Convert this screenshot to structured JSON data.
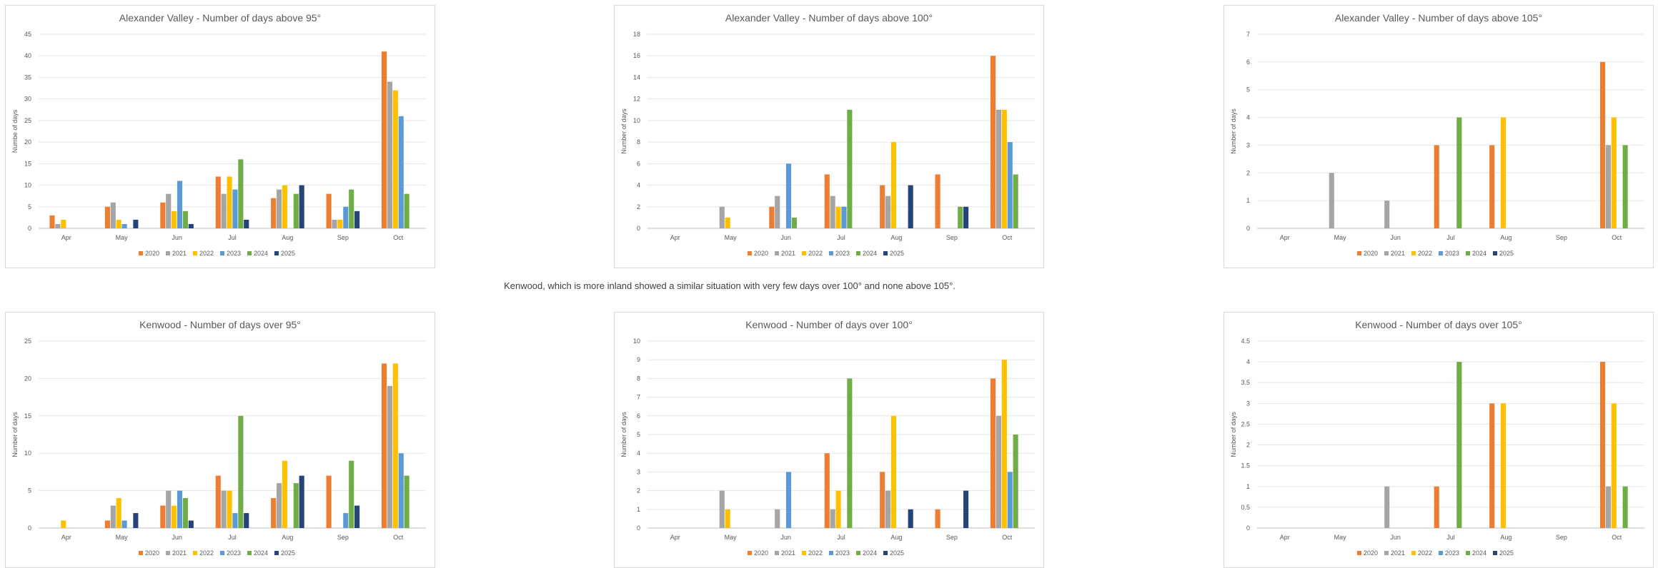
{
  "caption": "Kenwood, which is more inland showed a similar situation with very few days over 100° and none above 105°.",
  "series_colors": {
    "2020": "#ED7D31",
    "2021": "#A5A5A5",
    "2022": "#FFC000",
    "2023": "#5B9BD5",
    "2024": "#70AD47",
    "2025": "#264478"
  },
  "chart_data": [
    {
      "type": "bar",
      "title": "Alexander Valley - Number of days above 95°",
      "ylabel": "Numbe of days",
      "categories": [
        "Apr",
        "May",
        "Jun",
        "Jul",
        "Aug",
        "Sep",
        "Oct"
      ],
      "ylim": [
        0,
        45
      ],
      "yticks": [
        0,
        5,
        10,
        15,
        20,
        25,
        30,
        35,
        40,
        45
      ],
      "legend_position": "bottom",
      "series": [
        {
          "name": "2020",
          "values": [
            3,
            5,
            6,
            12,
            7,
            8,
            41
          ]
        },
        {
          "name": "2021",
          "values": [
            1,
            6,
            8,
            8,
            9,
            2,
            34
          ]
        },
        {
          "name": "2022",
          "values": [
            2,
            2,
            4,
            12,
            10,
            2,
            32
          ]
        },
        {
          "name": "2023",
          "values": [
            0,
            1,
            11,
            9,
            0,
            5,
            26
          ]
        },
        {
          "name": "2024",
          "values": [
            0,
            0,
            4,
            16,
            8,
            9,
            8
          ]
        },
        {
          "name": "2025",
          "values": [
            0,
            2,
            1,
            2,
            10,
            4,
            0
          ]
        }
      ]
    },
    {
      "type": "bar",
      "title": "Alexander Valley - Number of days above 100°",
      "ylabel": "Number of days",
      "categories": [
        "Apr",
        "May",
        "Jun",
        "Jul",
        "Aug",
        "Sep",
        "Oct"
      ],
      "ylim": [
        0,
        18
      ],
      "yticks": [
        0,
        2,
        4,
        6,
        8,
        10,
        12,
        14,
        16,
        18
      ],
      "legend_position": "bottom",
      "series": [
        {
          "name": "2020",
          "values": [
            0,
            0,
            2,
            5,
            4,
            5,
            16
          ]
        },
        {
          "name": "2021",
          "values": [
            0,
            2,
            3,
            3,
            3,
            0,
            11
          ]
        },
        {
          "name": "2022",
          "values": [
            0,
            1,
            0,
            2,
            8,
            0,
            11
          ]
        },
        {
          "name": "2023",
          "values": [
            0,
            0,
            6,
            2,
            0,
            0,
            8
          ]
        },
        {
          "name": "2024",
          "values": [
            0,
            0,
            1,
            11,
            0,
            2,
            5
          ]
        },
        {
          "name": "2025",
          "values": [
            0,
            0,
            0,
            0,
            4,
            2,
            0
          ]
        }
      ]
    },
    {
      "type": "bar",
      "title": "Alexander Valley - Number of days above 105°",
      "ylabel": "Number of days",
      "categories": [
        "Apr",
        "May",
        "Jun",
        "Jul",
        "Aug",
        "Sep",
        "Oct"
      ],
      "ylim": [
        0,
        7
      ],
      "yticks": [
        0,
        1,
        2,
        3,
        4,
        5,
        6,
        7
      ],
      "legend_position": "bottom",
      "series": [
        {
          "name": "2020",
          "values": [
            0,
            0,
            0,
            3,
            3,
            0,
            6
          ]
        },
        {
          "name": "2021",
          "values": [
            0,
            2,
            1,
            0,
            0,
            0,
            3
          ]
        },
        {
          "name": "2022",
          "values": [
            0,
            0,
            0,
            0,
            4,
            0,
            4
          ]
        },
        {
          "name": "2023",
          "values": [
            0,
            0,
            0,
            0,
            0,
            0,
            0
          ]
        },
        {
          "name": "2024",
          "values": [
            0,
            0,
            0,
            4,
            0,
            0,
            3
          ]
        },
        {
          "name": "2025",
          "values": [
            0,
            0,
            0,
            0,
            0,
            0,
            0
          ]
        }
      ]
    },
    {
      "type": "bar",
      "title": "Kenwood - Number of days over 95°",
      "ylabel": "Number of days",
      "categories": [
        "Apr",
        "May",
        "Jun",
        "Jul",
        "Aug",
        "Sep",
        "Oct"
      ],
      "ylim": [
        0,
        25
      ],
      "yticks": [
        0,
        5,
        10,
        15,
        20,
        25
      ],
      "legend_position": "bottom",
      "series": [
        {
          "name": "2020",
          "values": [
            0,
            1,
            3,
            7,
            4,
            7,
            22
          ]
        },
        {
          "name": "2021",
          "values": [
            0,
            3,
            5,
            5,
            6,
            0,
            19
          ]
        },
        {
          "name": "2022",
          "values": [
            1,
            4,
            3,
            5,
            9,
            0,
            22
          ]
        },
        {
          "name": "2023",
          "values": [
            0,
            1,
            5,
            2,
            0,
            2,
            10
          ]
        },
        {
          "name": "2024",
          "values": [
            0,
            0,
            4,
            15,
            6,
            9,
            7
          ]
        },
        {
          "name": "2025",
          "values": [
            0,
            2,
            1,
            2,
            7,
            3,
            0
          ]
        }
      ]
    },
    {
      "type": "bar",
      "title": "Kenwood - Number of days over 100°",
      "ylabel": "Number of days",
      "categories": [
        "Apr",
        "May",
        "Jun",
        "Jul",
        "Aug",
        "Sep",
        "Oct"
      ],
      "ylim": [
        0,
        10
      ],
      "yticks": [
        0,
        1,
        2,
        3,
        4,
        5,
        6,
        7,
        8,
        9,
        10
      ],
      "legend_position": "bottom",
      "series": [
        {
          "name": "2020",
          "values": [
            0,
            0,
            0,
            4,
            3,
            1,
            8
          ]
        },
        {
          "name": "2021",
          "values": [
            0,
            2,
            1,
            1,
            2,
            0,
            6
          ]
        },
        {
          "name": "2022",
          "values": [
            0,
            1,
            0,
            2,
            6,
            0,
            9
          ]
        },
        {
          "name": "2023",
          "values": [
            0,
            0,
            3,
            0,
            0,
            0,
            3
          ]
        },
        {
          "name": "2024",
          "values": [
            0,
            0,
            0,
            8,
            0,
            0,
            5
          ]
        },
        {
          "name": "2025",
          "values": [
            0,
            0,
            0,
            0,
            1,
            2,
            0
          ]
        }
      ]
    },
    {
      "type": "bar",
      "title": "Kenwood - Number of days over 105°",
      "ylabel": "Number of days",
      "categories": [
        "Apr",
        "May",
        "Jun",
        "Jul",
        "Aug",
        "Sep",
        "Oct"
      ],
      "ylim": [
        0,
        4.5
      ],
      "yticks": [
        0,
        0.5,
        1,
        1.5,
        2,
        2.5,
        3,
        3.5,
        4,
        4.5
      ],
      "legend_position": "bottom",
      "series": [
        {
          "name": "2020",
          "values": [
            0,
            0,
            0,
            1,
            3,
            0,
            4
          ]
        },
        {
          "name": "2021",
          "values": [
            0,
            0,
            1,
            0,
            0,
            0,
            1
          ]
        },
        {
          "name": "2022",
          "values": [
            0,
            0,
            0,
            0,
            3,
            0,
            3
          ]
        },
        {
          "name": "2023",
          "values": [
            0,
            0,
            0,
            0,
            0,
            0,
            0
          ]
        },
        {
          "name": "2024",
          "values": [
            0,
            0,
            0,
            4,
            0,
            0,
            1
          ]
        },
        {
          "name": "2025",
          "values": [
            0,
            0,
            0,
            0,
            0,
            0,
            0
          ]
        }
      ]
    }
  ]
}
